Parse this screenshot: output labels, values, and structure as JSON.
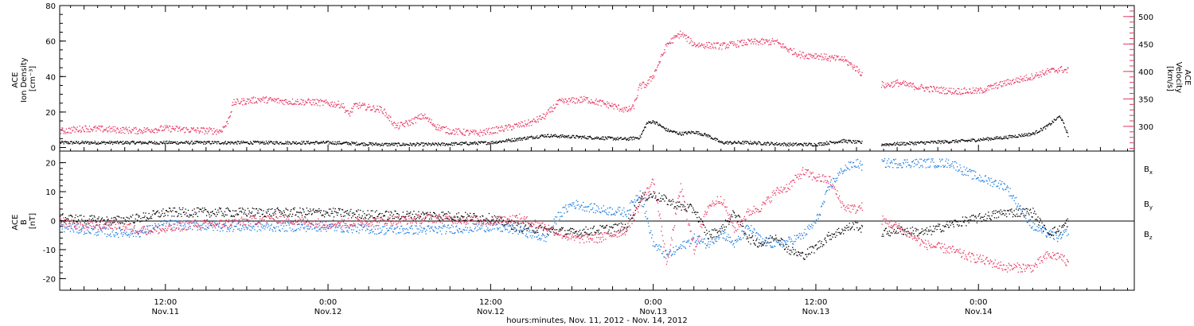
{
  "colors": {
    "black": "#000000",
    "pink": "#e8335f",
    "blue": "#1a7be0",
    "frame": "#000000"
  },
  "xaxis": {
    "label": "hours:minutes, Nov. 11, 2012 - Nov. 14, 2012",
    "ticks": [
      {
        "t": 12,
        "time": "12:00",
        "date": "Nov.11"
      },
      {
        "t": 24,
        "time": "0:00",
        "date": "Nov.12"
      },
      {
        "t": 36,
        "time": "12:00",
        "date": "Nov.12"
      },
      {
        "t": 48,
        "time": "0:00",
        "date": "Nov.13"
      },
      {
        "t": 60,
        "time": "12:00",
        "date": "Nov.13"
      },
      {
        "t": 72,
        "time": "0:00",
        "date": "Nov.14"
      }
    ]
  },
  "chart_data": [
    {
      "type": "scatter",
      "panel": "top",
      "xrange_hours": [
        4.2,
        83.5
      ],
      "y_left": {
        "label_lines": [
          "ACE",
          "Ion Density",
          "[cm⁻³]"
        ],
        "ticks": [
          "0",
          "20",
          "40",
          "60",
          "80"
        ],
        "ylim": [
          -2,
          80
        ]
      },
      "y_right": {
        "label_lines": [
          "ACE",
          "Velocity",
          "[km/s]"
        ],
        "ticks": [
          "300",
          "350",
          "400",
          "450",
          "500"
        ],
        "ylim": [
          255,
          520
        ]
      },
      "series": [
        {
          "axis": "left",
          "color": "black",
          "points": [
            [
              4.2,
              3
            ],
            [
              8,
              3
            ],
            [
              12,
              3
            ],
            [
              16,
              3
            ],
            [
              20,
              3
            ],
            [
              24,
              3
            ],
            [
              28,
              2
            ],
            [
              32,
              2
            ],
            [
              36,
              3
            ],
            [
              38,
              5
            ],
            [
              40,
              7
            ],
            [
              43,
              6
            ],
            [
              46,
              5
            ],
            [
              47,
              6
            ],
            [
              47.5,
              14
            ],
            [
              48,
              15
            ],
            [
              49,
              10
            ],
            [
              50,
              8
            ],
            [
              51,
              9
            ],
            [
              52,
              7
            ],
            [
              53,
              3
            ],
            [
              55,
              3
            ],
            [
              58,
              2
            ],
            [
              60,
              2
            ],
            [
              62,
              4
            ],
            [
              63.3,
              3
            ],
            [
              65,
              2
            ],
            [
              68,
              3
            ],
            [
              71,
              4
            ],
            [
              74,
              6
            ],
            [
              76,
              8
            ],
            [
              77,
              12
            ],
            [
              78,
              18
            ],
            [
              78.6,
              7
            ]
          ]
        },
        {
          "axis": "right",
          "color": "pink",
          "points": [
            [
              4.2,
              292
            ],
            [
              6,
              297
            ],
            [
              8,
              295
            ],
            [
              10,
              293
            ],
            [
              12,
              297
            ],
            [
              14,
              294
            ],
            [
              16,
              292
            ],
            [
              16.5,
              305
            ],
            [
              17,
              344
            ],
            [
              19,
              350
            ],
            [
              21,
              346
            ],
            [
              23,
              345
            ],
            [
              25,
              340
            ],
            [
              25.5,
              322
            ],
            [
              26,
              340
            ],
            [
              27,
              335
            ],
            [
              28,
              331
            ],
            [
              29,
              300
            ],
            [
              30,
              308
            ],
            [
              31,
              320
            ],
            [
              32,
              300
            ],
            [
              33,
              292
            ],
            [
              35,
              288
            ],
            [
              37,
              297
            ],
            [
              39,
              308
            ],
            [
              40,
              320
            ],
            [
              41,
              345
            ],
            [
              43,
              350
            ],
            [
              45,
              338
            ],
            [
              46,
              330
            ],
            [
              46.5,
              335
            ],
            [
              47,
              375
            ],
            [
              47.5,
              377
            ],
            [
              48,
              395
            ],
            [
              49,
              450
            ],
            [
              50,
              470
            ],
            [
              51,
              450
            ],
            [
              53,
              447
            ],
            [
              55,
              454
            ],
            [
              57,
              455
            ],
            [
              58,
              440
            ],
            [
              59,
              430
            ],
            [
              60,
              430
            ],
            [
              61,
              425
            ],
            [
              62,
              423
            ],
            [
              63,
              405
            ],
            [
              63.3,
              398
            ],
            [
              65,
              375
            ],
            [
              66,
              380
            ],
            [
              68,
              370
            ],
            [
              70,
              365
            ],
            [
              72,
              365
            ],
            [
              74,
              380
            ],
            [
              76,
              392
            ],
            [
              77,
              400
            ],
            [
              78,
              405
            ],
            [
              78.6,
              402
            ]
          ]
        }
      ]
    },
    {
      "type": "scatter",
      "panel": "bottom",
      "xrange_hours": [
        4.2,
        83.5
      ],
      "y_left": {
        "label_lines": [
          "ACE",
          "B",
          "[nT]"
        ],
        "ticks": [
          "-20",
          "-10",
          "0",
          "10",
          "20"
        ],
        "ylim": [
          -24,
          24
        ]
      },
      "legend": [
        {
          "name": "Bx",
          "color": "black"
        },
        {
          "name": "By",
          "color": "blue"
        },
        {
          "name": "Bz",
          "color": "pink"
        }
      ],
      "series": [
        {
          "name": "Bx",
          "color": "black",
          "points": [
            [
              4.2,
              1
            ],
            [
              8,
              0
            ],
            [
              10,
              1
            ],
            [
              12,
              3
            ],
            [
              16,
              3
            ],
            [
              20,
              3
            ],
            [
              24,
              3
            ],
            [
              28,
              2
            ],
            [
              32,
              2
            ],
            [
              36,
              1
            ],
            [
              38,
              -2
            ],
            [
              40,
              -3
            ],
            [
              42,
              -4
            ],
            [
              44,
              -3
            ],
            [
              46,
              -2
            ],
            [
              47,
              8
            ],
            [
              48,
              9
            ],
            [
              49,
              7
            ],
            [
              50,
              5
            ],
            [
              51,
              4
            ],
            [
              52,
              -5
            ],
            [
              53,
              -3
            ],
            [
              54,
              3
            ],
            [
              55,
              -6
            ],
            [
              56,
              -8
            ],
            [
              57,
              -5
            ],
            [
              58,
              -10
            ],
            [
              59,
              -12
            ],
            [
              60,
              -9
            ],
            [
              61,
              -5
            ],
            [
              62,
              -3
            ],
            [
              63,
              -1
            ],
            [
              63.3,
              -3
            ],
            [
              65,
              -4
            ],
            [
              66,
              -3
            ],
            [
              68,
              -4
            ],
            [
              70,
              -1
            ],
            [
              72,
              1
            ],
            [
              74,
              3
            ],
            [
              76,
              3
            ],
            [
              77,
              -4
            ],
            [
              78,
              -3
            ],
            [
              78.6,
              0
            ]
          ]
        },
        {
          "name": "By",
          "color": "blue",
          "points": [
            [
              4.2,
              -2
            ],
            [
              8,
              -4
            ],
            [
              10,
              -4
            ],
            [
              12,
              -1
            ],
            [
              16,
              -2
            ],
            [
              20,
              -2
            ],
            [
              24,
              -2
            ],
            [
              28,
              -3
            ],
            [
              32,
              -3
            ],
            [
              36,
              -2
            ],
            [
              38,
              -3
            ],
            [
              40,
              -6
            ],
            [
              41,
              2
            ],
            [
              42,
              6
            ],
            [
              44,
              4
            ],
            [
              46,
              3
            ],
            [
              47,
              10
            ],
            [
              48,
              -8
            ],
            [
              49,
              -12
            ],
            [
              50,
              -9
            ],
            [
              51,
              -6
            ],
            [
              52,
              -8
            ],
            [
              53,
              -4
            ],
            [
              54,
              -8
            ],
            [
              55,
              -2
            ],
            [
              56,
              -7
            ],
            [
              57,
              -8
            ],
            [
              58,
              -7
            ],
            [
              59,
              -5
            ],
            [
              60,
              0
            ],
            [
              61,
              12
            ],
            [
              62,
              18
            ],
            [
              63,
              20
            ],
            [
              63.3,
              19
            ],
            [
              65,
              20
            ],
            [
              66,
              20
            ],
            [
              68,
              20
            ],
            [
              70,
              20
            ],
            [
              71,
              17
            ],
            [
              72,
              15
            ],
            [
              74,
              12
            ],
            [
              75,
              5
            ],
            [
              76,
              -2
            ],
            [
              77,
              -4
            ],
            [
              78,
              -6
            ],
            [
              78.6,
              -3
            ]
          ]
        },
        {
          "name": "Bz",
          "color": "pink",
          "points": [
            [
              4.2,
              0
            ],
            [
              6,
              -2
            ],
            [
              8,
              -1
            ],
            [
              10,
              -3
            ],
            [
              12,
              -3
            ],
            [
              14,
              -1
            ],
            [
              16,
              -1
            ],
            [
              20,
              1
            ],
            [
              24,
              -1
            ],
            [
              28,
              0
            ],
            [
              32,
              1
            ],
            [
              36,
              0
            ],
            [
              38,
              1
            ],
            [
              40,
              -2
            ],
            [
              42,
              -6
            ],
            [
              44,
              -6
            ],
            [
              46,
              -3
            ],
            [
              47,
              6
            ],
            [
              48,
              14
            ],
            [
              49,
              -15
            ],
            [
              50,
              12
            ],
            [
              51,
              -10
            ],
            [
              52,
              5
            ],
            [
              53,
              8
            ],
            [
              54,
              -3
            ],
            [
              55,
              3
            ],
            [
              56,
              5
            ],
            [
              57,
              10
            ],
            [
              58,
              12
            ],
            [
              59,
              17
            ],
            [
              60,
              15
            ],
            [
              61,
              14
            ],
            [
              62,
              5
            ],
            [
              63,
              4
            ],
            [
              63.3,
              5
            ],
            [
              65,
              0
            ],
            [
              66,
              -2
            ],
            [
              67,
              -5
            ],
            [
              68,
              -8
            ],
            [
              70,
              -10
            ],
            [
              71,
              -12
            ],
            [
              72,
              -13
            ],
            [
              74,
              -16
            ],
            [
              76,
              -16
            ],
            [
              77,
              -12
            ],
            [
              78,
              -12
            ],
            [
              78.6,
              -15
            ]
          ]
        }
      ]
    }
  ]
}
